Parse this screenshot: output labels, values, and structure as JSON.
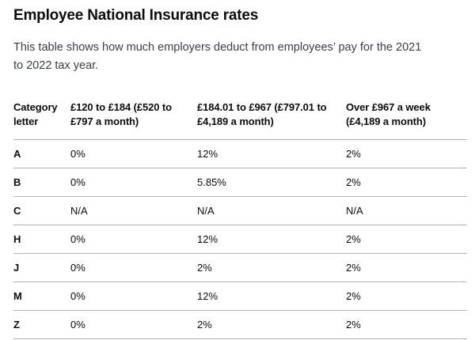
{
  "page": {
    "title": "Employee National Insurance rates",
    "description": "This table shows how much employers deduct from employees’ pay for the 2021 to 2022 tax year."
  },
  "colors": {
    "text": "#0b0c0c",
    "body_text": "#3b4045",
    "border": "#b1b4b6"
  },
  "table": {
    "columns": [
      "Category letter",
      "£120 to £184 (£520 to £797 a month)",
      "£184.01 to £967 (£797.01 to £4,189 a month)",
      "Over £967 a week (£4,189 a month)"
    ],
    "rows": [
      {
        "letter": "A",
        "band1": "0%",
        "band2": "12%",
        "band3": "2%"
      },
      {
        "letter": "B",
        "band1": "0%",
        "band2": "5.85%",
        "band3": "2%"
      },
      {
        "letter": "C",
        "band1": "N/A",
        "band2": "N/A",
        "band3": "N/A"
      },
      {
        "letter": "H",
        "band1": "0%",
        "band2": "12%",
        "band3": "2%"
      },
      {
        "letter": "J",
        "band1": "0%",
        "band2": "2%",
        "band3": "2%"
      },
      {
        "letter": "M",
        "band1": "0%",
        "band2": "12%",
        "band3": "2%"
      },
      {
        "letter": "Z",
        "band1": "0%",
        "band2": "2%",
        "band3": "2%"
      }
    ]
  }
}
